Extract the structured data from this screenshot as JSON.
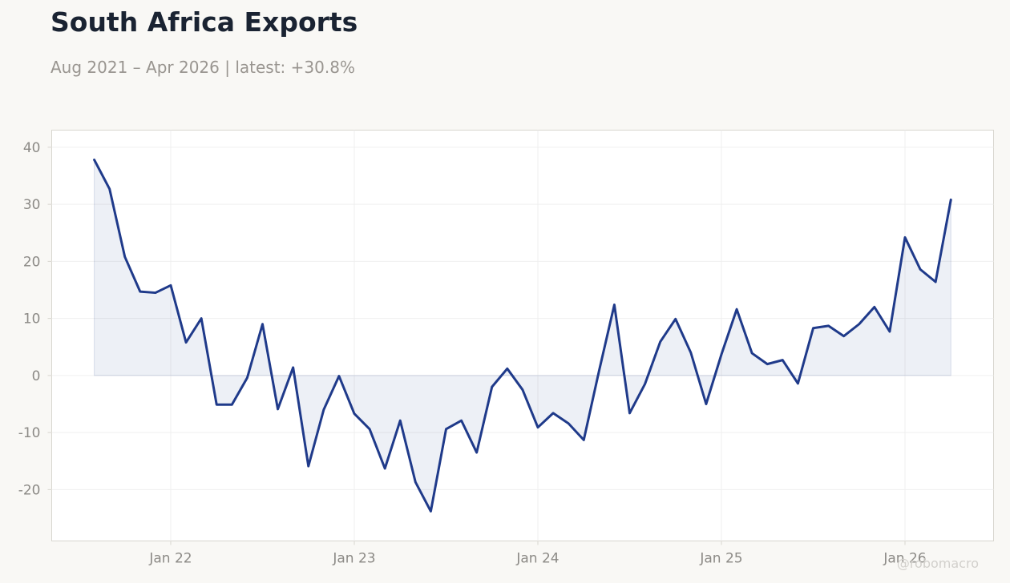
{
  "title": "South Africa Exports",
  "subtitle": "Aug 2021 – Apr 2026 | latest: +30.8%",
  "watermark": "@robomacro",
  "colors": {
    "line": "#1f3a8a",
    "fill": "#1f3a8a",
    "background": "#f9f8f5",
    "plot_background": "#ffffff",
    "grid": "#efefef",
    "axis": "#d8d6cf",
    "text_muted": "#8c8a86"
  },
  "chart_data": {
    "type": "area",
    "title": "South Africa Exports",
    "subtitle": "Aug 2021 – Apr 2026 | latest: +30.8%",
    "xlabel": "",
    "ylabel": "",
    "x_start": "2021-08",
    "x_end": "2026-04",
    "ylim": [
      -29,
      43
    ],
    "yticks": [
      -20,
      -10,
      0,
      10,
      20,
      30,
      40
    ],
    "xticks": [
      {
        "date": "2022-01",
        "label": "Jan 22"
      },
      {
        "date": "2023-01",
        "label": "Jan 23"
      },
      {
        "date": "2024-01",
        "label": "Jan 24"
      },
      {
        "date": "2025-01",
        "label": "Jan 25"
      },
      {
        "date": "2026-01",
        "label": "Jan 26"
      }
    ],
    "grid": true,
    "legend": false,
    "series": [
      {
        "x": [
          "2021-08",
          "2021-09",
          "2021-10",
          "2021-11",
          "2021-12",
          "2022-01",
          "2022-02",
          "2022-03",
          "2022-04",
          "2022-05",
          "2022-06",
          "2022-07",
          "2022-08",
          "2022-09",
          "2022-10",
          "2022-11",
          "2022-12",
          "2023-01",
          "2023-02",
          "2023-03",
          "2023-04",
          "2023-05",
          "2023-06",
          "2023-07",
          "2023-08",
          "2023-09",
          "2023-10",
          "2023-11",
          "2023-12",
          "2024-01",
          "2024-02",
          "2024-03",
          "2024-04",
          "2024-05",
          "2024-06",
          "2024-07",
          "2024-08",
          "2024-09",
          "2024-10",
          "2024-11",
          "2024-12",
          "2025-01",
          "2025-02",
          "2025-03",
          "2025-04",
          "2025-05",
          "2025-06",
          "2025-07",
          "2025-08",
          "2025-09",
          "2025-10",
          "2025-11",
          "2025-12",
          "2026-01",
          "2026-02",
          "2026-03",
          "2026-04"
        ],
        "values": [
          37.8,
          32.7,
          20.8,
          14.7,
          14.5,
          15.8,
          5.8,
          10.0,
          -5.1,
          -5.1,
          -0.4,
          9.0,
          -5.9,
          1.4,
          -15.9,
          -6.0,
          -0.1,
          -6.7,
          -9.4,
          -16.3,
          -7.9,
          -18.7,
          -23.8,
          -9.4,
          -7.9,
          -13.5,
          -2.0,
          1.2,
          -2.5,
          -9.1,
          -6.6,
          -8.4,
          -11.3,
          0.8,
          12.4,
          -6.6,
          -1.5,
          5.9,
          9.9,
          4.0,
          -5.0,
          3.7,
          11.6,
          3.9,
          2.0,
          2.7,
          -1.4,
          8.3,
          8.7,
          6.9,
          9.0,
          12.0,
          7.7,
          24.2,
          18.6,
          16.4,
          30.8
        ]
      }
    ]
  }
}
